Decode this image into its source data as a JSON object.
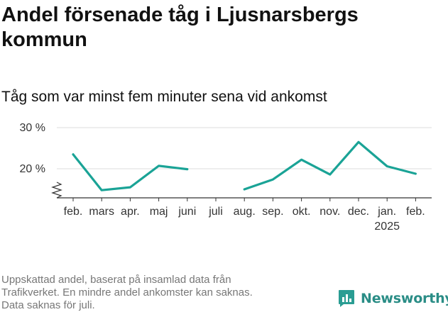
{
  "title": "Andel försenade tåg i Ljusnarsbergs kommun",
  "subtitle": "Tåg som var minst fem minuter sena vid ankomst",
  "footnote_lines": [
    "Uppskattad andel, baserat på insamlad data från",
    "Trafikverket. En mindre andel ankomster kan saknas.",
    "Data saknas för juli."
  ],
  "brand": {
    "name": "Newsworthy",
    "color": "#2a9d93",
    "icon": "bar-chart-logo-icon"
  },
  "chart_data": {
    "type": "line",
    "categories": [
      "feb.",
      "mars",
      "apr.",
      "maj",
      "juni",
      "juli",
      "aug.",
      "sep.",
      "okt.",
      "nov.",
      "dec.",
      "jan.",
      "feb."
    ],
    "year_labels": {
      "11": "2025"
    },
    "series": [
      {
        "values": [
          23.5,
          14.8,
          15.5,
          20.7,
          19.9,
          null,
          15.0,
          17.4,
          22.2,
          18.6,
          26.5,
          20.6,
          18.8
        ]
      }
    ],
    "yticks": [
      20,
      30
    ],
    "ytick_labels": [
      "20 %",
      "30 %"
    ],
    "ylim": [
      11,
      31
    ],
    "axis_break": true,
    "grid": true,
    "line_color": "#1aa396"
  }
}
